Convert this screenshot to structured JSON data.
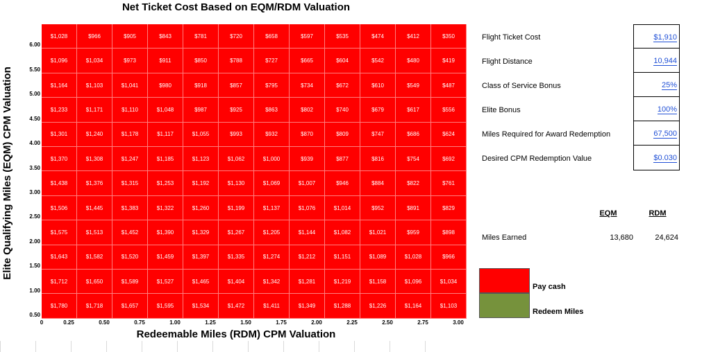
{
  "chart_data": {
    "type": "heatmap",
    "title": "Net Ticket Cost Based on EQM/RDM Valuation",
    "xlabel": "Redeemable Miles (RDM) CPM Valuation",
    "ylabel": "Elite Qualifying Miles (EQM) CPM Valuation",
    "x_origin_label": "0",
    "x_ticks": [
      "0.25",
      "0.50",
      "0.75",
      "1.00",
      "1.25",
      "1.50",
      "1.75",
      "2.00",
      "2.25",
      "2.50",
      "2.75",
      "3.00"
    ],
    "y_ticks": [
      "6.00",
      "5.50",
      "5.00",
      "4.50",
      "4.00",
      "3.50",
      "3.00",
      "2.50",
      "2.00",
      "1.50",
      "1.00",
      "0.50"
    ],
    "cells": [
      [
        "$1,028",
        "$966",
        "$905",
        "$843",
        "$781",
        "$720",
        "$658",
        "$597",
        "$535",
        "$474",
        "$412",
        "$350"
      ],
      [
        "$1,096",
        "$1,034",
        "$973",
        "$911",
        "$850",
        "$788",
        "$727",
        "$665",
        "$604",
        "$542",
        "$480",
        "$419"
      ],
      [
        "$1,164",
        "$1,103",
        "$1,041",
        "$980",
        "$918",
        "$857",
        "$795",
        "$734",
        "$672",
        "$610",
        "$549",
        "$487"
      ],
      [
        "$1,233",
        "$1,171",
        "$1,110",
        "$1,048",
        "$987",
        "$925",
        "$863",
        "$802",
        "$740",
        "$679",
        "$617",
        "$556"
      ],
      [
        "$1,301",
        "$1,240",
        "$1,178",
        "$1,117",
        "$1,055",
        "$993",
        "$932",
        "$870",
        "$809",
        "$747",
        "$686",
        "$624"
      ],
      [
        "$1,370",
        "$1,308",
        "$1,247",
        "$1,185",
        "$1,123",
        "$1,062",
        "$1,000",
        "$939",
        "$877",
        "$816",
        "$754",
        "$692"
      ],
      [
        "$1,438",
        "$1,376",
        "$1,315",
        "$1,253",
        "$1,192",
        "$1,130",
        "$1,069",
        "$1,007",
        "$946",
        "$884",
        "$822",
        "$761"
      ],
      [
        "$1,506",
        "$1,445",
        "$1,383",
        "$1,322",
        "$1,260",
        "$1,199",
        "$1,137",
        "$1,076",
        "$1,014",
        "$952",
        "$891",
        "$829"
      ],
      [
        "$1,575",
        "$1,513",
        "$1,452",
        "$1,390",
        "$1,329",
        "$1,267",
        "$1,205",
        "$1,144",
        "$1,082",
        "$1,021",
        "$959",
        "$898"
      ],
      [
        "$1,643",
        "$1,582",
        "$1,520",
        "$1,459",
        "$1,397",
        "$1,335",
        "$1,274",
        "$1,212",
        "$1,151",
        "$1,089",
        "$1,028",
        "$966"
      ],
      [
        "$1,712",
        "$1,650",
        "$1,589",
        "$1,527",
        "$1,465",
        "$1,404",
        "$1,342",
        "$1,281",
        "$1,219",
        "$1,158",
        "$1,096",
        "$1,034"
      ],
      [
        "$1,780",
        "$1,718",
        "$1,657",
        "$1,595",
        "$1,534",
        "$1,472",
        "$1,411",
        "$1,349",
        "$1,288",
        "$1,226",
        "$1,164",
        "$1,103"
      ]
    ],
    "cell_color": "#ff0000",
    "cell_text_color": "#ffffff"
  },
  "parameters": [
    {
      "label": "Flight Ticket Cost",
      "value": "$1,910"
    },
    {
      "label": "Flight Distance",
      "value": "10,944"
    },
    {
      "label": "Class of Service Bonus",
      "value": "25%"
    },
    {
      "label": "Elite Bonus",
      "value": "100%"
    },
    {
      "label": "Miles Required for Award Redemption",
      "value": "67,500"
    },
    {
      "label": "Desired CPM Redemption Value",
      "value": "$0.030"
    }
  ],
  "miles_table": {
    "eqm_header": "EQM",
    "rdm_header": "RDM",
    "row_label": "Miles Earned",
    "eqm_value": "13,680",
    "rdm_value": "24,624"
  },
  "legend": [
    {
      "label": "Pay cash",
      "color": "#ff0000"
    },
    {
      "label": "Redeem Miles",
      "color": "#76923c"
    }
  ]
}
